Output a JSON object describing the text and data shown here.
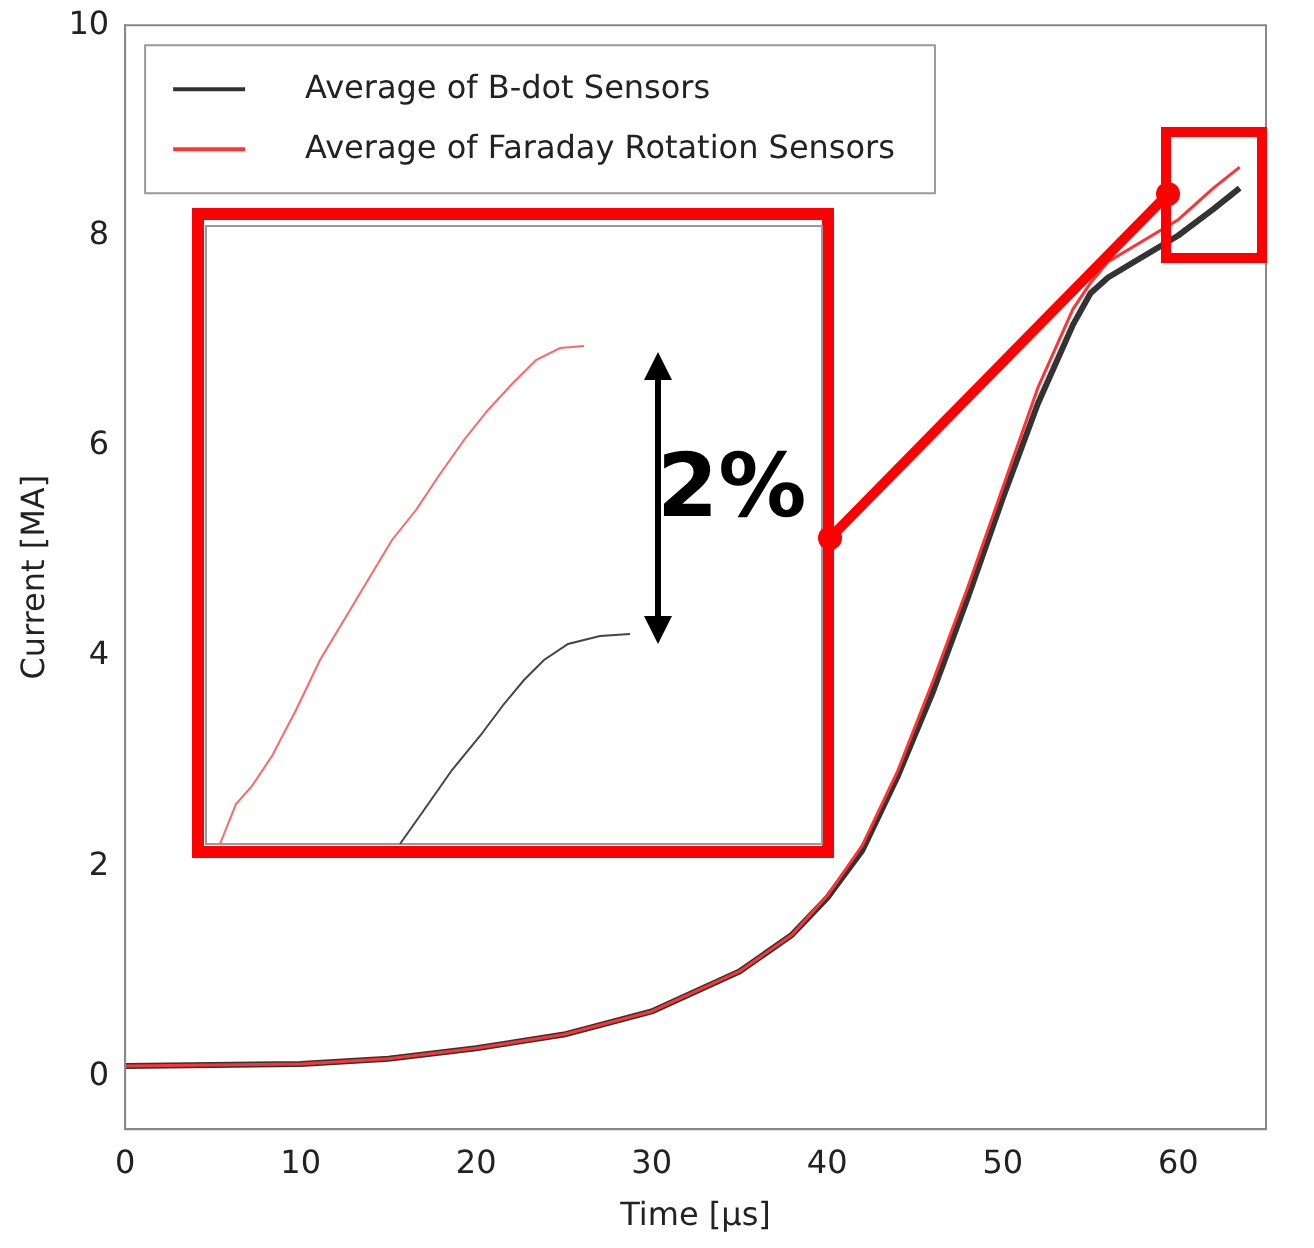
{
  "chart_data": {
    "type": "line",
    "xlabel": "Time [μs]",
    "ylabel": "Current [MA]",
    "xlim": [
      0,
      65
    ],
    "xticks": [
      0,
      10,
      20,
      30,
      40,
      50,
      60
    ],
    "ylim": [
      -0.5,
      10
    ],
    "yticks": [
      0,
      2,
      4,
      6,
      8,
      10
    ],
    "grid": false,
    "legend": "top left",
    "marker": "none",
    "line_style": "solid",
    "x": [
      0,
      10,
      15,
      20,
      25,
      30,
      35,
      38,
      40,
      42,
      44,
      46,
      48,
      50,
      52,
      54,
      55,
      56,
      58,
      60,
      62,
      63.5
    ],
    "series": [
      {
        "name": "Average of B-dot Sensors",
        "color": "#333333",
        "values": [
          0.1,
          0.12,
          0.17,
          0.27,
          0.4,
          0.62,
          1.0,
          1.35,
          1.7,
          2.15,
          2.85,
          3.65,
          4.55,
          5.5,
          6.4,
          7.15,
          7.45,
          7.6,
          7.8,
          8.0,
          8.25,
          8.45
        ]
      },
      {
        "name": "Average of Faraday Rotation Sensors",
        "color": "#ff3333",
        "values": [
          0.1,
          0.12,
          0.17,
          0.27,
          0.4,
          0.62,
          1.0,
          1.35,
          1.72,
          2.2,
          2.9,
          3.75,
          4.65,
          5.6,
          6.55,
          7.3,
          7.55,
          7.75,
          7.95,
          8.15,
          8.45,
          8.65
        ]
      }
    ],
    "annotations": [
      "2%"
    ]
  }
}
